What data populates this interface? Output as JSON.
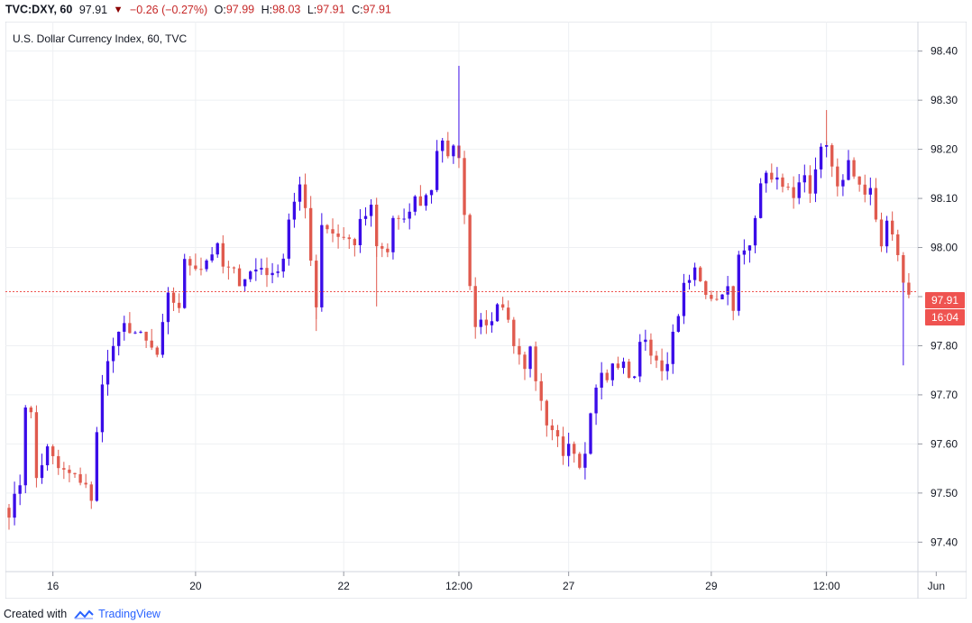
{
  "header": {
    "symbol": "TVC:DXY, 60",
    "price": "97.91",
    "change": "−0.26 (−0.27%)",
    "o_label": "O:",
    "o_value": "97.99",
    "h_label": "H:",
    "h_value": "98.03",
    "l_label": "L:",
    "l_value": "97.91",
    "c_label": "C:",
    "c_value": "97.91"
  },
  "chart_data": {
    "type": "candlestick",
    "title": "U.S. Dollar Currency Index, 60, TVC",
    "ylim": [
      97.34,
      98.46
    ],
    "y_ticks": [
      "98.40",
      "98.30",
      "98.20",
      "98.10",
      "98.00",
      "97.90",
      "97.80",
      "97.70",
      "97.60",
      "97.50",
      "97.40"
    ],
    "x_ticks": [
      {
        "label": "16",
        "index": 8
      },
      {
        "label": "20",
        "index": 34
      },
      {
        "label": "22",
        "index": 61
      },
      {
        "label": "12:00",
        "index": 82
      },
      {
        "label": "27",
        "index": 102
      },
      {
        "label": "29",
        "index": 128
      },
      {
        "label": "12:00",
        "index": 149
      },
      {
        "label": "Jun",
        "index": 169
      }
    ],
    "last_price": "97.91",
    "countdown": "16:04",
    "up_color": "#3a0ce8",
    "down_color": "#e05a4e",
    "grid": true,
    "close_path": [
      [
        0,
        97.46
      ],
      [
        2,
        97.52
      ],
      [
        3,
        97.68
      ],
      [
        4,
        97.66
      ],
      [
        5,
        97.53
      ],
      [
        7,
        97.59
      ],
      [
        9,
        97.55
      ],
      [
        14,
        97.52
      ],
      [
        15,
        97.48
      ],
      [
        16,
        97.62
      ],
      [
        17,
        97.73
      ],
      [
        19,
        97.8
      ],
      [
        21,
        97.84
      ],
      [
        24,
        97.82
      ],
      [
        27,
        97.78
      ],
      [
        29,
        97.9
      ],
      [
        31,
        97.88
      ],
      [
        32,
        97.97
      ],
      [
        35,
        97.96
      ],
      [
        37,
        97.99
      ],
      [
        38,
        98.0
      ],
      [
        39,
        97.96
      ],
      [
        41,
        97.95
      ],
      [
        42,
        97.93
      ],
      [
        44,
        97.95
      ],
      [
        46,
        97.96
      ],
      [
        48,
        97.94
      ],
      [
        50,
        97.98
      ],
      [
        51,
        98.06
      ],
      [
        53,
        98.12
      ],
      [
        54,
        98.08
      ],
      [
        56,
        97.88
      ],
      [
        57,
        98.05
      ],
      [
        59,
        98.03
      ],
      [
        61,
        98.02
      ],
      [
        63,
        98.01
      ],
      [
        64,
        98.05
      ],
      [
        66,
        98.08
      ],
      [
        67,
        98.0
      ],
      [
        69,
        97.99
      ],
      [
        70,
        98.06
      ],
      [
        72,
        98.05
      ],
      [
        74,
        98.1
      ],
      [
        75,
        98.09
      ],
      [
        77,
        98.12
      ],
      [
        78,
        98.2
      ],
      [
        79,
        98.22
      ],
      [
        80,
        98.18
      ],
      [
        81,
        98.2
      ],
      [
        82,
        98.19
      ],
      [
        83,
        98.06
      ],
      [
        84,
        97.93
      ],
      [
        85,
        97.84
      ],
      [
        86,
        97.86
      ],
      [
        88,
        97.84
      ],
      [
        89,
        97.89
      ],
      [
        91,
        97.86
      ],
      [
        92,
        97.8
      ],
      [
        94,
        97.76
      ],
      [
        95,
        97.79
      ],
      [
        96,
        97.72
      ],
      [
        97,
        97.68
      ],
      [
        98,
        97.63
      ],
      [
        100,
        97.61
      ],
      [
        101,
        97.58
      ],
      [
        102,
        97.61
      ],
      [
        104,
        97.56
      ],
      [
        105,
        97.59
      ],
      [
        106,
        97.66
      ],
      [
        107,
        97.72
      ],
      [
        108,
        97.74
      ],
      [
        109,
        97.73
      ],
      [
        110,
        97.76
      ],
      [
        112,
        97.76
      ],
      [
        113,
        97.74
      ],
      [
        114,
        97.74
      ],
      [
        115,
        97.8
      ],
      [
        116,
        97.82
      ],
      [
        117,
        97.78
      ],
      [
        118,
        97.78
      ],
      [
        119,
        97.74
      ],
      [
        120,
        97.76
      ],
      [
        121,
        97.82
      ],
      [
        122,
        97.87
      ],
      [
        123,
        97.92
      ],
      [
        124,
        97.94
      ],
      [
        125,
        97.95
      ],
      [
        126,
        97.93
      ],
      [
        127,
        97.9
      ],
      [
        129,
        97.9
      ],
      [
        131,
        97.92
      ],
      [
        132,
        97.88
      ],
      [
        133,
        97.98
      ],
      [
        135,
        98.0
      ],
      [
        136,
        98.06
      ],
      [
        137,
        98.14
      ],
      [
        138,
        98.16
      ],
      [
        139,
        98.13
      ],
      [
        140,
        98.15
      ],
      [
        141,
        98.12
      ],
      [
        143,
        98.11
      ],
      [
        145,
        98.14
      ],
      [
        146,
        98.1
      ],
      [
        147,
        98.15
      ],
      [
        148,
        98.2
      ],
      [
        149,
        98.21
      ],
      [
        150,
        98.17
      ],
      [
        151,
        98.12
      ],
      [
        152,
        98.13
      ],
      [
        153,
        98.18
      ],
      [
        154,
        98.15
      ],
      [
        155,
        98.13
      ],
      [
        156,
        98.1
      ],
      [
        157,
        98.12
      ],
      [
        158,
        98.06
      ],
      [
        159,
        98.0
      ],
      [
        160,
        98.05
      ],
      [
        161,
        98.03
      ],
      [
        162,
        97.98
      ],
      [
        163,
        97.93
      ],
      [
        164,
        97.91
      ]
    ]
  },
  "footer": {
    "created_with": "Created with",
    "brand": "TradingView"
  }
}
